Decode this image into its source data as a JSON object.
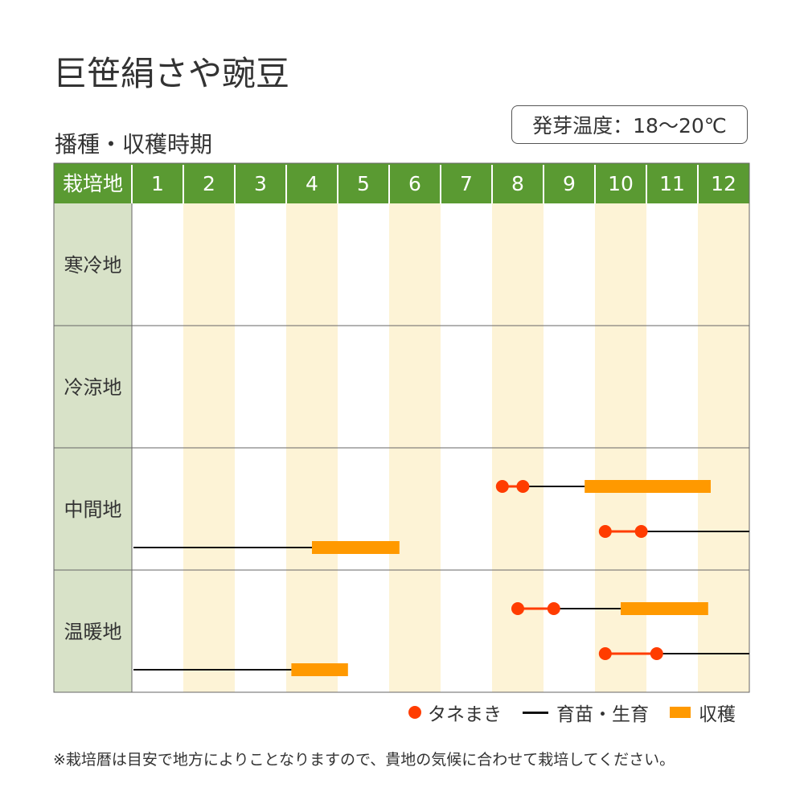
{
  "title": "巨笹絹さや豌豆",
  "subtitle": "播種・収穫時期",
  "germination_temp": "発芽温度：18～20℃",
  "colors": {
    "header_green": "#5a9a32",
    "region_col_bg": "#d8e2c8",
    "alt_month_bg": "#fdf3d6",
    "sowing_dot": "#ff3c00",
    "growth_line": "#111111",
    "harvest_bar": "#ff9900"
  },
  "chart_data": {
    "type": "table",
    "region_header": "栽培地",
    "months": [
      "1",
      "2",
      "3",
      "4",
      "5",
      "6",
      "7",
      "8",
      "9",
      "10",
      "11",
      "12"
    ],
    "regions": [
      {
        "name": "寒冷地",
        "schedules": []
      },
      {
        "name": "冷涼地",
        "schedules": []
      },
      {
        "name": "中間地",
        "schedules": [
          {
            "sowing": [
              8.2,
              8.6
            ],
            "growth": [
              8.6,
              9.8
            ],
            "harvest": [
              9.8,
              12.25
            ]
          },
          {
            "sowing": [
              10.2,
              10.9
            ],
            "growth": [
              10.9,
              13.0
            ]
          },
          {
            "growth": [
              1.0,
              4.5
            ],
            "harvest": [
              4.5,
              6.2
            ]
          }
        ]
      },
      {
        "name": "温暖地",
        "schedules": [
          {
            "sowing": [
              8.5,
              9.2
            ],
            "growth": [
              9.2,
              10.5
            ],
            "harvest": [
              10.5,
              12.2
            ]
          },
          {
            "sowing": [
              10.2,
              11.2
            ],
            "growth": [
              11.2,
              13.0
            ]
          },
          {
            "growth": [
              1.0,
              4.1
            ],
            "harvest": [
              4.1,
              5.2
            ]
          }
        ]
      }
    ],
    "legend": {
      "sowing": "タネまき",
      "growth": "育苗・生育",
      "harvest": "収穫"
    }
  },
  "note": "※栽培暦は目安で地方によりことなりますので、貴地の気候に合わせて栽培してください。"
}
